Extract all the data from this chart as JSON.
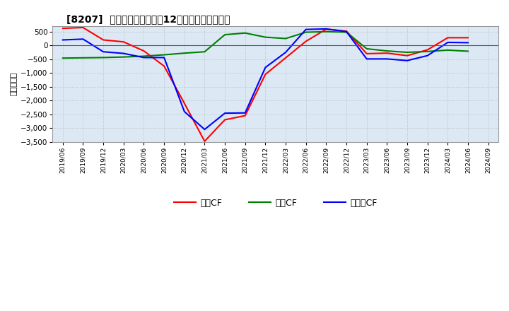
{
  "title": "[8207]  キャッシュフローの12か月移動合計の推移",
  "ylabel": "（百万円）",
  "background_color": "#ffffff",
  "plot_bg_color": "#dce9f5",
  "grid_color": "#ffffff",
  "ylim": [
    -3500,
    700
  ],
  "yticks": [
    500,
    0,
    -500,
    -1000,
    -1500,
    -2000,
    -2500,
    -3000,
    -3500
  ],
  "dates": [
    "2019/06",
    "2019/09",
    "2019/12",
    "2020/03",
    "2020/06",
    "2020/09",
    "2020/12",
    "2021/03",
    "2021/06",
    "2021/09",
    "2021/12",
    "2022/03",
    "2022/06",
    "2022/09",
    "2022/12",
    "2023/03",
    "2023/06",
    "2023/09",
    "2023/12",
    "2024/03",
    "2024/06",
    "2024/09"
  ],
  "eigyo_cf": [
    620,
    650,
    200,
    130,
    -200,
    -750,
    -2100,
    -3480,
    -2700,
    -2550,
    -1050,
    -450,
    150,
    590,
    520,
    -300,
    -280,
    -370,
    -160,
    280,
    280,
    null
  ],
  "toshi_cf": [
    -460,
    -450,
    -440,
    -420,
    -390,
    -340,
    -280,
    -230,
    390,
    450,
    300,
    250,
    480,
    500,
    480,
    -120,
    -200,
    -250,
    -220,
    -170,
    -210,
    null
  ],
  "free_cf": [
    200,
    230,
    -230,
    -290,
    -440,
    -440,
    -2400,
    -3050,
    -2460,
    -2450,
    -800,
    -250,
    580,
    600,
    500,
    -490,
    -490,
    -550,
    -370,
    110,
    100,
    null
  ],
  "eigyo_color": "#ff0000",
  "toshi_color": "#008000",
  "free_color": "#0000ff",
  "legend_labels": [
    "営業CF",
    "投資CF",
    "フリーCF"
  ],
  "line_width": 1.5
}
